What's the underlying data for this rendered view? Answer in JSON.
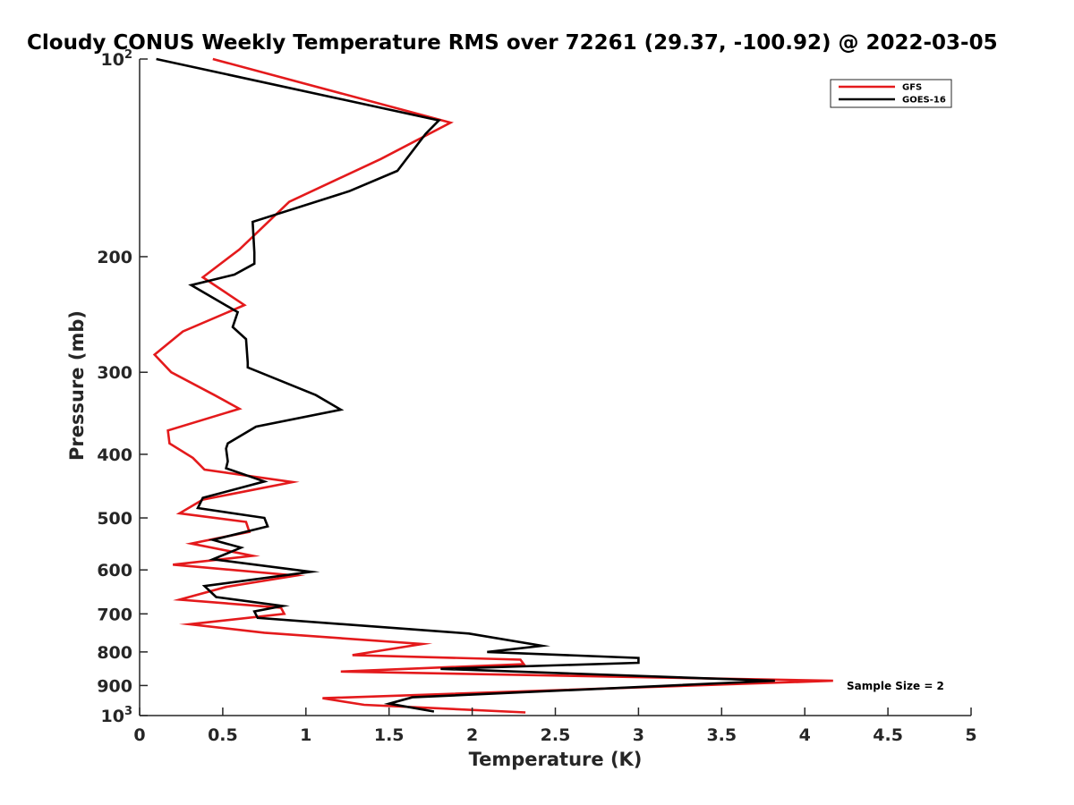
{
  "chart_data": {
    "type": "line",
    "title": "Cloudy CONUS Weekly Temperature RMS over 72261 (29.37, -100.92) @ 2022-03-05",
    "xlabel": "Temperature (K)",
    "ylabel": "Pressure (mb)",
    "xlim": [
      0,
      5
    ],
    "ylim": [
      100,
      1000
    ],
    "y_scale": "log",
    "y_reversed": true,
    "grid": false,
    "legend_position": "top-right",
    "x_ticks": [
      "0",
      "0.5",
      "1",
      "1.5",
      "2",
      "2.5",
      "3",
      "3.5",
      "4",
      "4.5",
      "5"
    ],
    "y_ticks": [
      {
        "value": 100,
        "base": "10",
        "exp": "2"
      },
      {
        "value": 200,
        "label": "200"
      },
      {
        "value": 300,
        "label": "300"
      },
      {
        "value": 400,
        "label": "400"
      },
      {
        "value": 500,
        "label": "500"
      },
      {
        "value": 600,
        "label": "600"
      },
      {
        "value": 700,
        "label": "700"
      },
      {
        "value": 800,
        "label": "800"
      },
      {
        "value": 900,
        "label": "900"
      },
      {
        "value": 1000,
        "base": "10",
        "exp": "3"
      }
    ],
    "series": [
      {
        "name": "GFS",
        "color": "#e41a1c",
        "points": [
          [
            0.44,
            100
          ],
          [
            1.87,
            125
          ],
          [
            1.45,
            142
          ],
          [
            0.9,
            165
          ],
          [
            0.6,
            195
          ],
          [
            0.38,
            215
          ],
          [
            0.63,
            237
          ],
          [
            0.26,
            260
          ],
          [
            0.09,
            282
          ],
          [
            0.19,
            300
          ],
          [
            0.45,
            325
          ],
          [
            0.6,
            341
          ],
          [
            0.17,
            368
          ],
          [
            0.18,
            385
          ],
          [
            0.32,
            405
          ],
          [
            0.39,
            422
          ],
          [
            0.92,
            441
          ],
          [
            0.38,
            469
          ],
          [
            0.24,
            492
          ],
          [
            0.64,
            507
          ],
          [
            0.66,
            525
          ],
          [
            0.31,
            547
          ],
          [
            0.68,
            571
          ],
          [
            0.2,
            589
          ],
          [
            0.94,
            612
          ],
          [
            0.52,
            637
          ],
          [
            0.24,
            666
          ],
          [
            0.85,
            685
          ],
          [
            0.87,
            700
          ],
          [
            0.3,
            726
          ],
          [
            0.75,
            748
          ],
          [
            1.7,
            778
          ],
          [
            1.28,
            809
          ],
          [
            2.29,
            822
          ],
          [
            2.31,
            835
          ],
          [
            1.21,
            857
          ],
          [
            4.17,
            885
          ],
          [
            1.1,
            941
          ],
          [
            1.35,
            963
          ],
          [
            2.32,
            989
          ]
        ]
      },
      {
        "name": "GOES-16",
        "color": "#000000",
        "points": [
          [
            0.1,
            100
          ],
          [
            1.8,
            124
          ],
          [
            1.72,
            130
          ],
          [
            1.55,
            148
          ],
          [
            1.26,
            159
          ],
          [
            0.68,
            177
          ],
          [
            0.69,
            197
          ],
          [
            0.69,
            205
          ],
          [
            0.57,
            213
          ],
          [
            0.31,
            221
          ],
          [
            0.59,
            243
          ],
          [
            0.56,
            256
          ],
          [
            0.64,
            267
          ],
          [
            0.65,
            290
          ],
          [
            0.65,
            295
          ],
          [
            1.06,
            325
          ],
          [
            1.21,
            342
          ],
          [
            0.7,
            363
          ],
          [
            0.53,
            385
          ],
          [
            0.52,
            392
          ],
          [
            0.53,
            410
          ],
          [
            0.52,
            420
          ],
          [
            0.75,
            440
          ],
          [
            0.38,
            466
          ],
          [
            0.35,
            483
          ],
          [
            0.75,
            500
          ],
          [
            0.77,
            515
          ],
          [
            0.44,
            540
          ],
          [
            0.61,
            555
          ],
          [
            0.44,
            578
          ],
          [
            1.03,
            604
          ],
          [
            0.39,
            635
          ],
          [
            0.46,
            660
          ],
          [
            0.86,
            681
          ],
          [
            0.69,
            694
          ],
          [
            0.71,
            710
          ],
          [
            1.98,
            750
          ],
          [
            2.42,
            783
          ],
          [
            2.09,
            800
          ],
          [
            3.0,
            817
          ],
          [
            3.0,
            831
          ],
          [
            1.81,
            849
          ],
          [
            3.82,
            885
          ],
          [
            1.64,
            938
          ],
          [
            1.5,
            959
          ],
          [
            1.77,
            986
          ]
        ]
      }
    ],
    "annotations": [
      {
        "text": "Sample Size = 2"
      }
    ]
  }
}
